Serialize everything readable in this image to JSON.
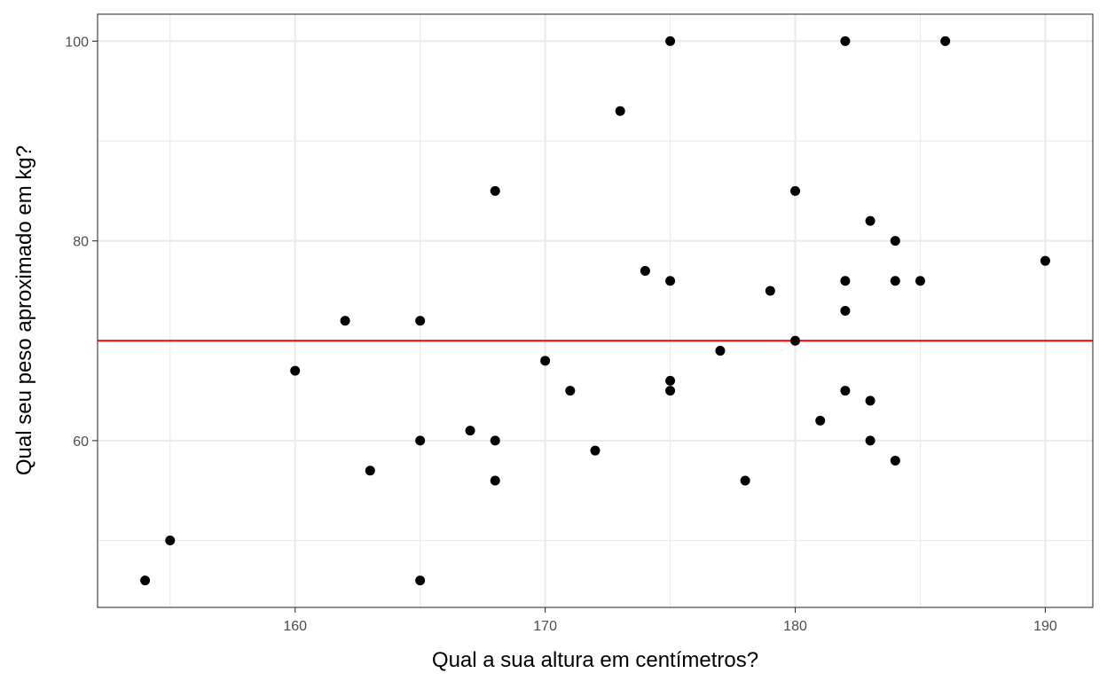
{
  "chart_data": {
    "type": "scatter",
    "xlabel": "Qual a sua altura em centímetros?",
    "ylabel": "Qual seu peso aproximado em kg?",
    "xlim": [
      152.1,
      191.9
    ],
    "ylim": [
      43.3,
      102.7
    ],
    "x_major_ticks": [
      160,
      170,
      180,
      190
    ],
    "x_minor_ticks": [
      155,
      165,
      175,
      185
    ],
    "y_major_ticks": [
      60,
      80,
      100
    ],
    "y_minor_ticks": [
      50,
      70,
      90
    ],
    "x_tick_labels": [
      "160",
      "170",
      "180",
      "190"
    ],
    "y_tick_labels": [
      "60",
      "80",
      "100"
    ],
    "grid": true,
    "points": [
      {
        "x": 154,
        "y": 46
      },
      {
        "x": 155,
        "y": 50
      },
      {
        "x": 160,
        "y": 67
      },
      {
        "x": 162,
        "y": 72
      },
      {
        "x": 163,
        "y": 57
      },
      {
        "x": 165,
        "y": 72
      },
      {
        "x": 165,
        "y": 60
      },
      {
        "x": 165,
        "y": 46
      },
      {
        "x": 167,
        "y": 61
      },
      {
        "x": 168,
        "y": 85
      },
      {
        "x": 168,
        "y": 60
      },
      {
        "x": 168,
        "y": 56
      },
      {
        "x": 170,
        "y": 68
      },
      {
        "x": 171,
        "y": 65
      },
      {
        "x": 172,
        "y": 59
      },
      {
        "x": 173,
        "y": 93
      },
      {
        "x": 174,
        "y": 77
      },
      {
        "x": 175,
        "y": 100
      },
      {
        "x": 175,
        "y": 76
      },
      {
        "x": 175,
        "y": 66
      },
      {
        "x": 175,
        "y": 65
      },
      {
        "x": 177,
        "y": 69
      },
      {
        "x": 178,
        "y": 56
      },
      {
        "x": 179,
        "y": 75
      },
      {
        "x": 180,
        "y": 85
      },
      {
        "x": 180,
        "y": 70
      },
      {
        "x": 181,
        "y": 62
      },
      {
        "x": 182,
        "y": 100
      },
      {
        "x": 182,
        "y": 76
      },
      {
        "x": 182,
        "y": 73
      },
      {
        "x": 182,
        "y": 65
      },
      {
        "x": 183,
        "y": 82
      },
      {
        "x": 183,
        "y": 64
      },
      {
        "x": 183,
        "y": 60
      },
      {
        "x": 184,
        "y": 80
      },
      {
        "x": 184,
        "y": 76
      },
      {
        "x": 184,
        "y": 58
      },
      {
        "x": 185,
        "y": 76
      },
      {
        "x": 186,
        "y": 100
      },
      {
        "x": 190,
        "y": 78
      }
    ],
    "reference_line": {
      "orientation": "horizontal",
      "y": 70,
      "color": "#ff0000"
    },
    "point_color": "#000000",
    "grid_color": "#ebebeb",
    "panel_border_color": "#333333"
  }
}
